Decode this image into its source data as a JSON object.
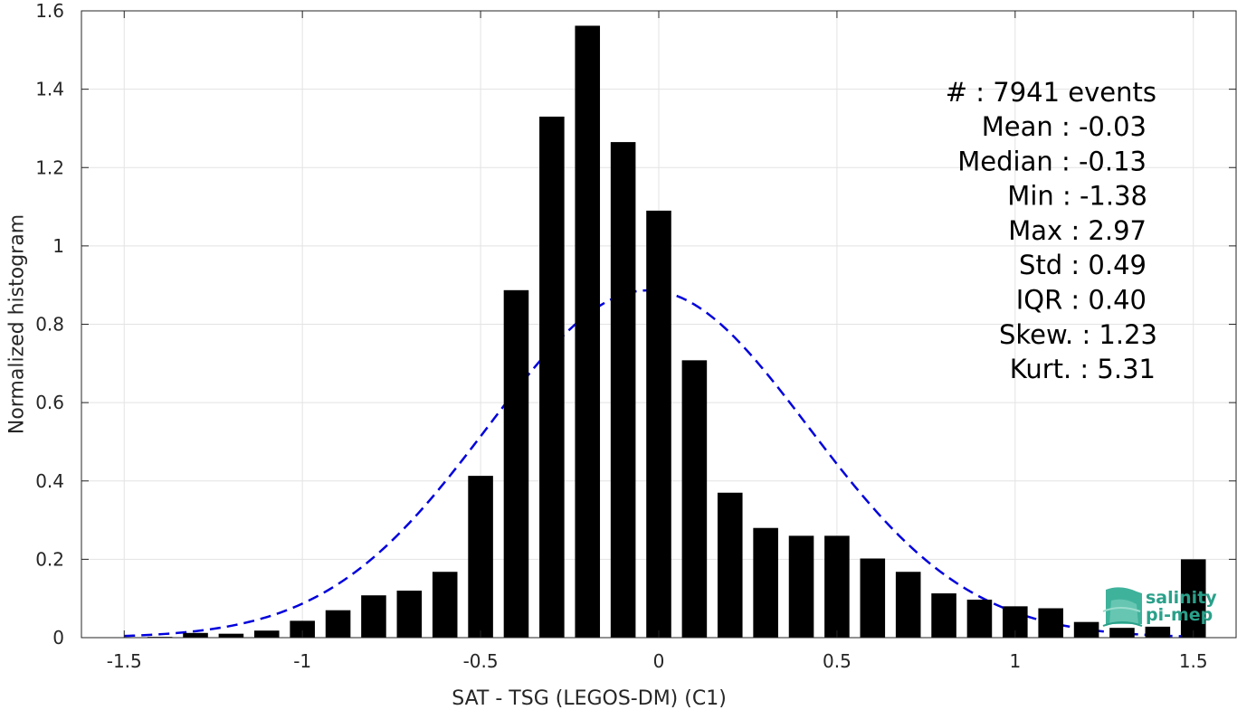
{
  "chart_data": {
    "type": "bar",
    "xlabel": "SAT - TSG (LEGOS-DM) (C1)",
    "ylabel": "Normalized histogram",
    "xlim": [
      -1.62,
      1.62
    ],
    "ylim": [
      0,
      1.6
    ],
    "xticks": [
      -1.5,
      -1,
      -0.5,
      0,
      0.5,
      1,
      1.5
    ],
    "xtick_labels": [
      "-1.5",
      "-1",
      "-0.5",
      "0",
      "0.5",
      "1",
      "1.5"
    ],
    "yticks": [
      0,
      0.2,
      0.4,
      0.6,
      0.8,
      1.0,
      1.2,
      1.4,
      1.6
    ],
    "ytick_labels": [
      "0",
      "0.2",
      "0.4",
      "0.6",
      "0.8",
      "1",
      "1.2",
      "1.4",
      "1.6"
    ],
    "grid": true,
    "bin_width": 0.1,
    "bar_color": "#000000",
    "bins": [
      {
        "x": -1.4,
        "y": 0.002
      },
      {
        "x": -1.3,
        "y": 0.012
      },
      {
        "x": -1.2,
        "y": 0.01
      },
      {
        "x": -1.1,
        "y": 0.018
      },
      {
        "x": -1.0,
        "y": 0.043
      },
      {
        "x": -0.9,
        "y": 0.07
      },
      {
        "x": -0.8,
        "y": 0.108
      },
      {
        "x": -0.7,
        "y": 0.12
      },
      {
        "x": -0.6,
        "y": 0.168
      },
      {
        "x": -0.5,
        "y": 0.413
      },
      {
        "x": -0.4,
        "y": 0.887
      },
      {
        "x": -0.3,
        "y": 1.33
      },
      {
        "x": -0.2,
        "y": 1.562
      },
      {
        "x": -0.1,
        "y": 1.265
      },
      {
        "x": 0.0,
        "y": 1.09
      },
      {
        "x": 0.1,
        "y": 0.708
      },
      {
        "x": 0.2,
        "y": 0.37
      },
      {
        "x": 0.3,
        "y": 0.28
      },
      {
        "x": 0.4,
        "y": 0.26
      },
      {
        "x": 0.5,
        "y": 0.26
      },
      {
        "x": 0.6,
        "y": 0.202
      },
      {
        "x": 0.7,
        "y": 0.168
      },
      {
        "x": 0.8,
        "y": 0.113
      },
      {
        "x": 0.9,
        "y": 0.097
      },
      {
        "x": 1.0,
        "y": 0.08
      },
      {
        "x": 1.1,
        "y": 0.075
      },
      {
        "x": 1.2,
        "y": 0.04
      },
      {
        "x": 1.3,
        "y": 0.025
      },
      {
        "x": 1.4,
        "y": 0.028
      },
      {
        "x": 1.5,
        "y": 0.2
      }
    ],
    "gaussian_fit": {
      "mean": -0.03,
      "std": 0.45,
      "x_range": [
        -1.5,
        1.5
      ],
      "color": "#0000dd",
      "style": "dashed"
    },
    "stats": {
      "count_label": "#  : 7941 events",
      "lines": [
        "Mean : -0.03",
        "Median : -0.13",
        "Min : -1.38",
        "Max : 2.97",
        "Std : 0.49",
        "IQR : 0.40",
        "Skew. : 1.23",
        "Kurt. : 5.31"
      ]
    }
  },
  "logo": {
    "line1": "salinity",
    "line2": "pi-mep",
    "color": "#2aa08a"
  }
}
